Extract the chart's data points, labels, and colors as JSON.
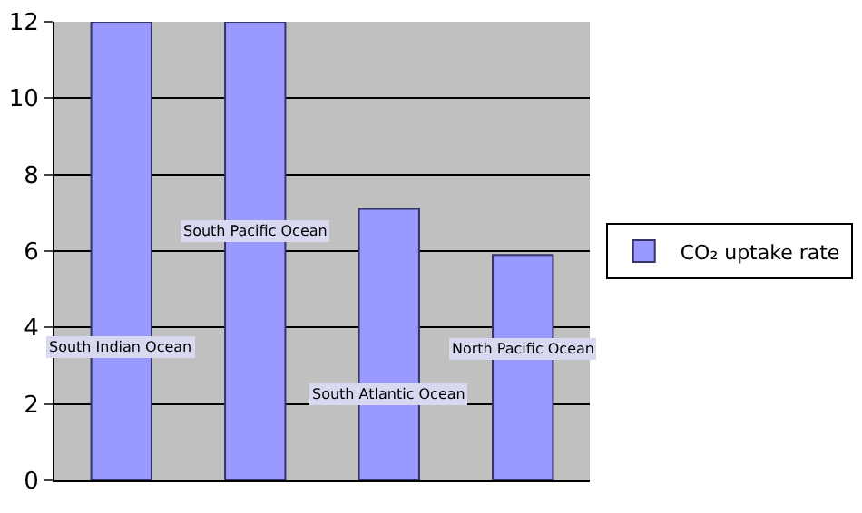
{
  "chart_data": {
    "type": "bar",
    "categories": [
      "South Indian Ocean",
      "South Pacific Ocean",
      "South Atlantic Ocean",
      "North Pacific Ocean"
    ],
    "series": [
      {
        "name": "CO₂ uptake rate",
        "color": "#9999ff",
        "values": [
          12,
          12,
          7.1,
          5.9
        ]
      }
    ],
    "ylim": [
      0,
      12
    ],
    "yticks": [
      0,
      2,
      4,
      6,
      8,
      10,
      12
    ],
    "grid": "y",
    "legend": "right",
    "tick_labels": "y"
  }
}
